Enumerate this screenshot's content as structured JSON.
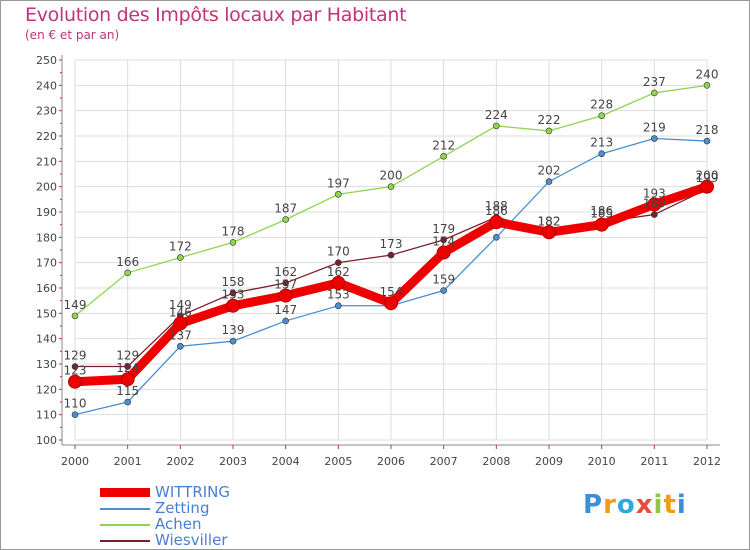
{
  "title": "Evolution des Impôts locaux par Habitant",
  "subtitle": "(en € et par an)",
  "logo": {
    "letters": [
      "P",
      "r",
      "o",
      "x",
      "i",
      "t",
      "i"
    ],
    "colors": [
      "#3a8fd6",
      "#f39c12",
      "#2eaadc",
      "#e74c3c",
      "#8dc63f",
      "#f39c12",
      "#3a8fd6"
    ]
  },
  "chart_data": {
    "type": "line",
    "title": "Evolution des Impôts locaux par Habitant",
    "xlabel": "",
    "ylabel": "(en € et par an)",
    "ylim": [
      100,
      250
    ],
    "yticks": [
      100,
      110,
      120,
      130,
      140,
      150,
      160,
      170,
      180,
      190,
      200,
      210,
      220,
      230,
      240,
      250
    ],
    "grid": true,
    "legend": "bottom-left",
    "categories": [
      "2000",
      "2001",
      "2002",
      "2003",
      "2004",
      "2005",
      "2006",
      "2007",
      "2008",
      "2009",
      "2010",
      "2011",
      "2012"
    ],
    "series": [
      {
        "name": "Achen",
        "color": "#8fd64f",
        "bold": false,
        "values": [
          149,
          166,
          172,
          178,
          187,
          197,
          200,
          212,
          224,
          222,
          228,
          237,
          240
        ],
        "labels": [
          "149",
          "166",
          "172",
          "178",
          "187",
          "197",
          "200",
          "212",
          "224",
          "222",
          "228",
          "237",
          "240"
        ]
      },
      {
        "name": "Zetting",
        "color": "#4a90d0",
        "bold": false,
        "values": [
          110,
          115,
          137,
          139,
          147,
          153,
          153,
          159,
          180,
          202,
          213,
          219,
          218
        ],
        "labels": [
          "110",
          "115",
          "137",
          "139",
          "147",
          "153",
          "",
          "159",
          "",
          "202",
          "213",
          "219",
          "218"
        ]
      },
      {
        "name": "Wiesviller",
        "color": "#7a1f2b",
        "bold": false,
        "values": [
          129,
          129,
          149,
          158,
          162,
          170,
          173,
          179,
          188,
          182,
          186,
          189,
          199
        ],
        "labels": [
          "129",
          "129",
          "149",
          "158",
          "162",
          "170",
          "173",
          "179",
          "188",
          "182",
          "186",
          "189",
          "199"
        ]
      },
      {
        "name": "WITTRING",
        "color": "#ee0000",
        "bold": true,
        "values": [
          123,
          124,
          146,
          153,
          157,
          162,
          154,
          174,
          186,
          182,
          185,
          193,
          200
        ],
        "labels": [
          "123",
          "124",
          "146",
          "153",
          "157",
          "162",
          "154",
          "174",
          "186",
          "182",
          "185",
          "193",
          "200"
        ]
      }
    ],
    "legend_order": [
      "WITTRING",
      "Zetting",
      "Achen",
      "Wiesviller"
    ]
  }
}
